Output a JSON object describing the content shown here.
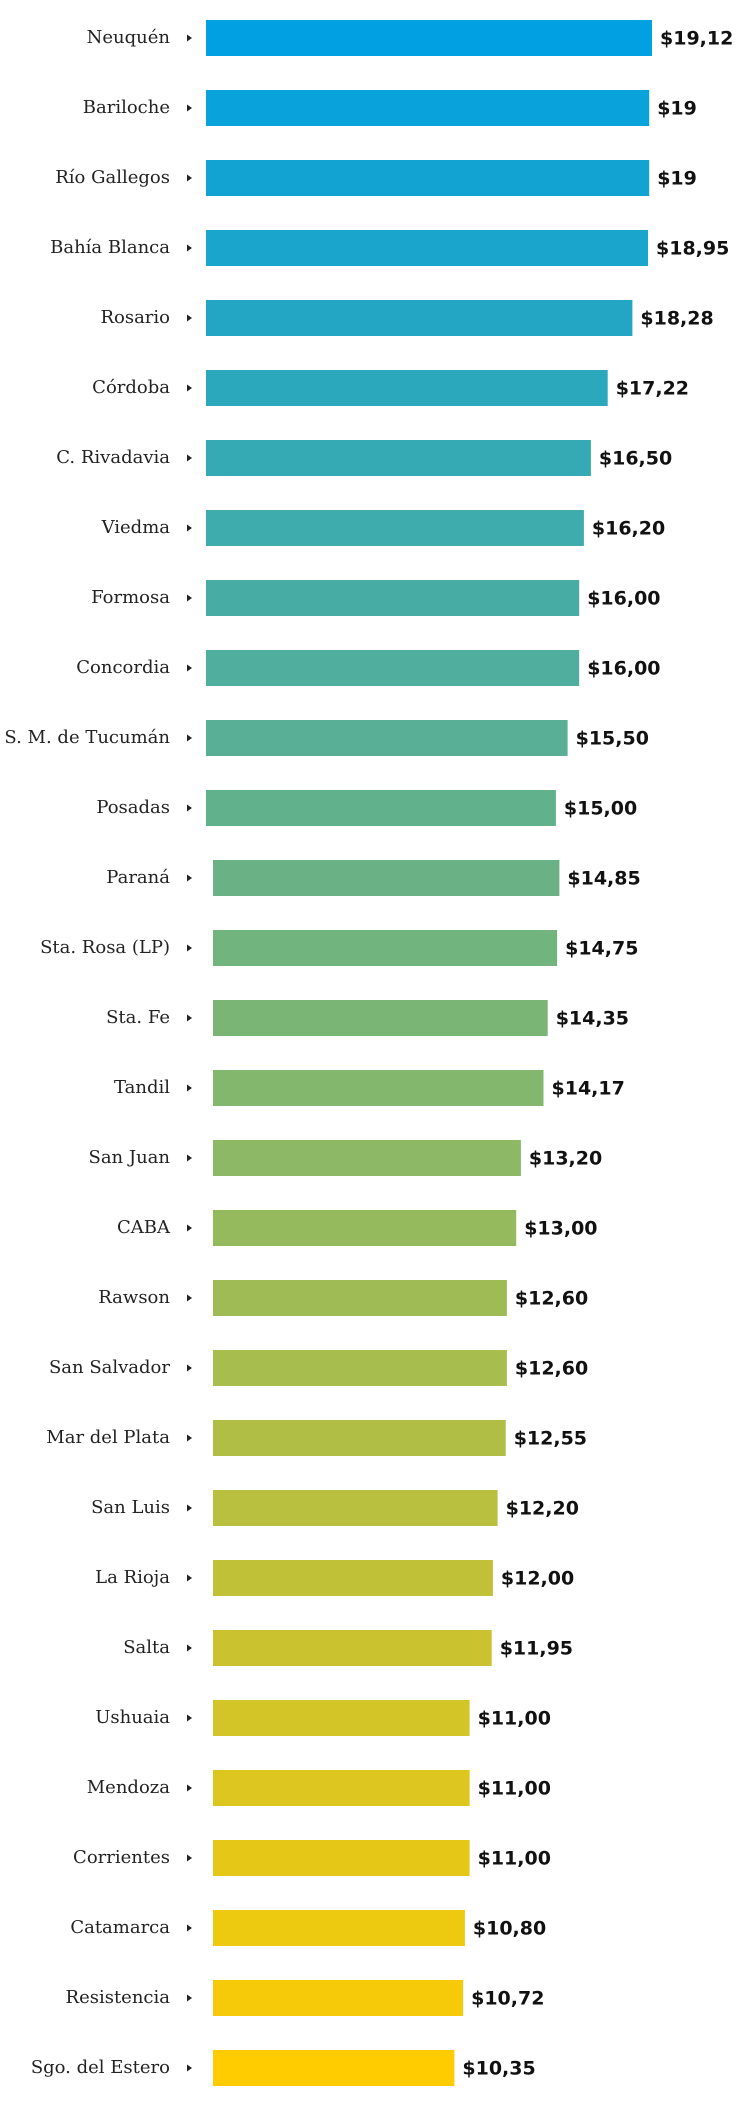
{
  "chart_data": {
    "type": "bar",
    "orientation": "horizontal",
    "title": "",
    "xlabel": "",
    "ylabel": "",
    "xlim": [
      0,
      19.12
    ],
    "currency_prefix": "$",
    "categories": [
      "Neuquén",
      "Bariloche",
      "Río Gallegos",
      "Bahía Blanca",
      "Rosario",
      "Córdoba",
      "C. Rivadavia",
      "Viedma",
      "Formosa",
      "Concordia",
      "S. M. de Tucumán",
      "Posadas",
      "Paraná",
      "Sta. Rosa (LP)",
      "Sta. Fe",
      "Tandil",
      "San Juan",
      "CABA",
      "Rawson",
      "San Salvador",
      "Mar del Plata",
      "San Luis",
      "La Rioja",
      "Salta",
      "Ushuaia",
      "Mendoza",
      "Corrientes",
      "Catamarca",
      "Resistencia",
      "Sgo. del Estero"
    ],
    "values": [
      19.12,
      19,
      19,
      18.95,
      18.28,
      17.22,
      16.5,
      16.2,
      16.0,
      16.0,
      15.5,
      15.0,
      14.85,
      14.75,
      14.35,
      14.17,
      13.2,
      13.0,
      12.6,
      12.6,
      12.55,
      12.2,
      12.0,
      11.95,
      11.0,
      11.0,
      11.0,
      10.8,
      10.72,
      10.35
    ],
    "value_labels": [
      "$19,12",
      "$19",
      "$19",
      "$18,95",
      "$18,28",
      "$17,22",
      "$16,50",
      "$16,20",
      "$16,00",
      "$16,00",
      "$15,50",
      "$15,00",
      "$14,85",
      "$14,75",
      "$14,35",
      "$14,17",
      "$13,20",
      "$13,00",
      "$12,60",
      "$12,60",
      "$12,55",
      "$12,20",
      "$12,00",
      "$11,95",
      "$11,00",
      "$11,00",
      "$11,00",
      "$10,80",
      "$10,72",
      "$10,35"
    ],
    "color_start": "#00A0E3",
    "color_end": "#FFCC00"
  }
}
